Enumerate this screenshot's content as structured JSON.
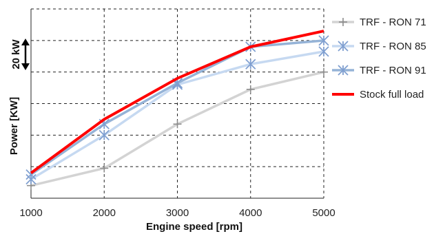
{
  "chart_data": {
    "type": "line",
    "xlabel": "Engine speed [rpm]",
    "ylabel": "Power  [KW]",
    "scale_annotation": "20 kW",
    "x": [
      1000,
      2000,
      3000,
      4000,
      5000
    ],
    "ylim": [
      0,
      120
    ],
    "ygrid": [
      0,
      20,
      40,
      60,
      80,
      100,
      120
    ],
    "grid": true,
    "legend_position": "right",
    "series": [
      {
        "name": "TRF - RON 71",
        "values": [
          8,
          19,
          47,
          69,
          80
        ],
        "color": "#d3d3d3",
        "marker": "plus"
      },
      {
        "name": "TRF - RON 85",
        "values": [
          12,
          40,
          72,
          85,
          93
        ],
        "color": "#c6d9f1",
        "marker": "star"
      },
      {
        "name": "TRF - RON 91",
        "values": [
          15,
          47,
          73,
          96,
          100
        ],
        "color": "#95b3d7",
        "marker": "star"
      },
      {
        "name": "Stock full load",
        "values": [
          16,
          50,
          76,
          96,
          106
        ],
        "color": "#ff0000",
        "marker": "none"
      }
    ]
  }
}
